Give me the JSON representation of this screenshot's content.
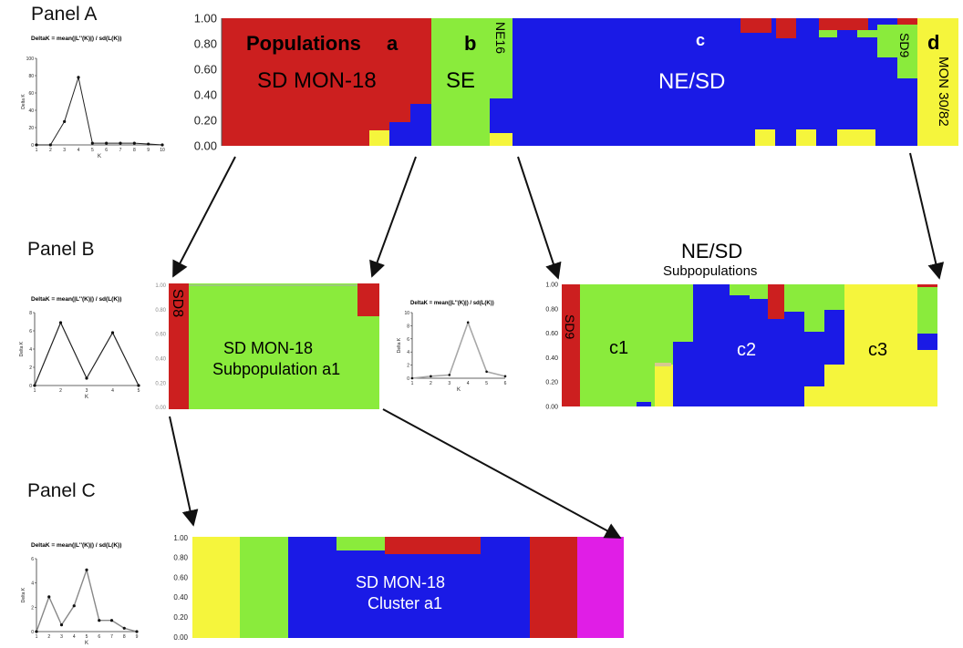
{
  "panels": {
    "a": "Panel A",
    "b": "Panel B",
    "c": "Panel C"
  },
  "colors": {
    "red": "#cc1f1f",
    "green": "#8aeb3c",
    "blue": "#1a1ae6",
    "yellow": "#f5f53c",
    "magenta": "#e01ee6",
    "grey_line": "#a8a8a8"
  },
  "y_axis_ticks": [
    "1.00",
    "0.80",
    "0.60",
    "0.40",
    "0.20",
    "0.00"
  ],
  "deltak": {
    "title": "DeltaK = mean(|L''(K)|) / sd(L(K))",
    "ylabel": "Delta K",
    "xlabel": "K",
    "panel_a": {
      "x": [
        1,
        2,
        3,
        4,
        5,
        6,
        7,
        8,
        9,
        10
      ],
      "y": [
        0,
        0,
        27,
        78,
        2,
        2,
        2,
        2,
        1,
        0
      ],
      "y_ticks": [
        "0",
        "20",
        "40",
        "60",
        "80",
        "100"
      ],
      "ylim": [
        0,
        100
      ]
    },
    "panel_b": {
      "x": [
        1,
        2,
        3,
        4,
        5
      ],
      "y": [
        0,
        6.9,
        0.8,
        5.8,
        0
      ],
      "y_ticks": [
        "0",
        "2",
        "4",
        "6",
        "8"
      ],
      "ylim": [
        0,
        8
      ]
    },
    "panel_b_inset": {
      "x": [
        1,
        2,
        3,
        4,
        5,
        6
      ],
      "y": [
        0,
        0.3,
        0.5,
        8.5,
        1,
        0.3
      ],
      "y_ticks": [
        "0",
        "2",
        "4",
        "6",
        "8",
        "10"
      ],
      "ylim": [
        0,
        10
      ]
    },
    "panel_c": {
      "x": [
        1,
        2,
        3,
        4,
        5,
        6,
        7,
        8,
        9
      ],
      "y": [
        0,
        3.1,
        0.6,
        2.3,
        5.5,
        1,
        1,
        0.3,
        0
      ],
      "y_ticks": [
        "0",
        "2",
        "4",
        "6"
      ],
      "ylim": [
        0,
        6.5
      ]
    }
  },
  "structure": {
    "panel_a_labels": {
      "populations": "Populations",
      "a": "a",
      "sd_mon18": "SD MON-18",
      "b": "b",
      "se": "SE",
      "ne16": "NE16",
      "c": "c",
      "ne_sd": "NE/SD",
      "sd9": "SD9",
      "d": "d",
      "mon3082": "MON 30/82"
    },
    "panel_b_left_labels": {
      "sd8": "SD8",
      "title_line1": "SD MON-18",
      "title_line2": "Subpopulation a1"
    },
    "panel_b_right_labels": {
      "title": "NE/SD",
      "subtitle": "Subpopulations",
      "sd9": "SD9",
      "c1": "c1",
      "c2": "c2",
      "c3": "c3"
    },
    "panel_c_labels": {
      "line1": "SD MON-18",
      "line2": "Cluster a1"
    }
  }
}
